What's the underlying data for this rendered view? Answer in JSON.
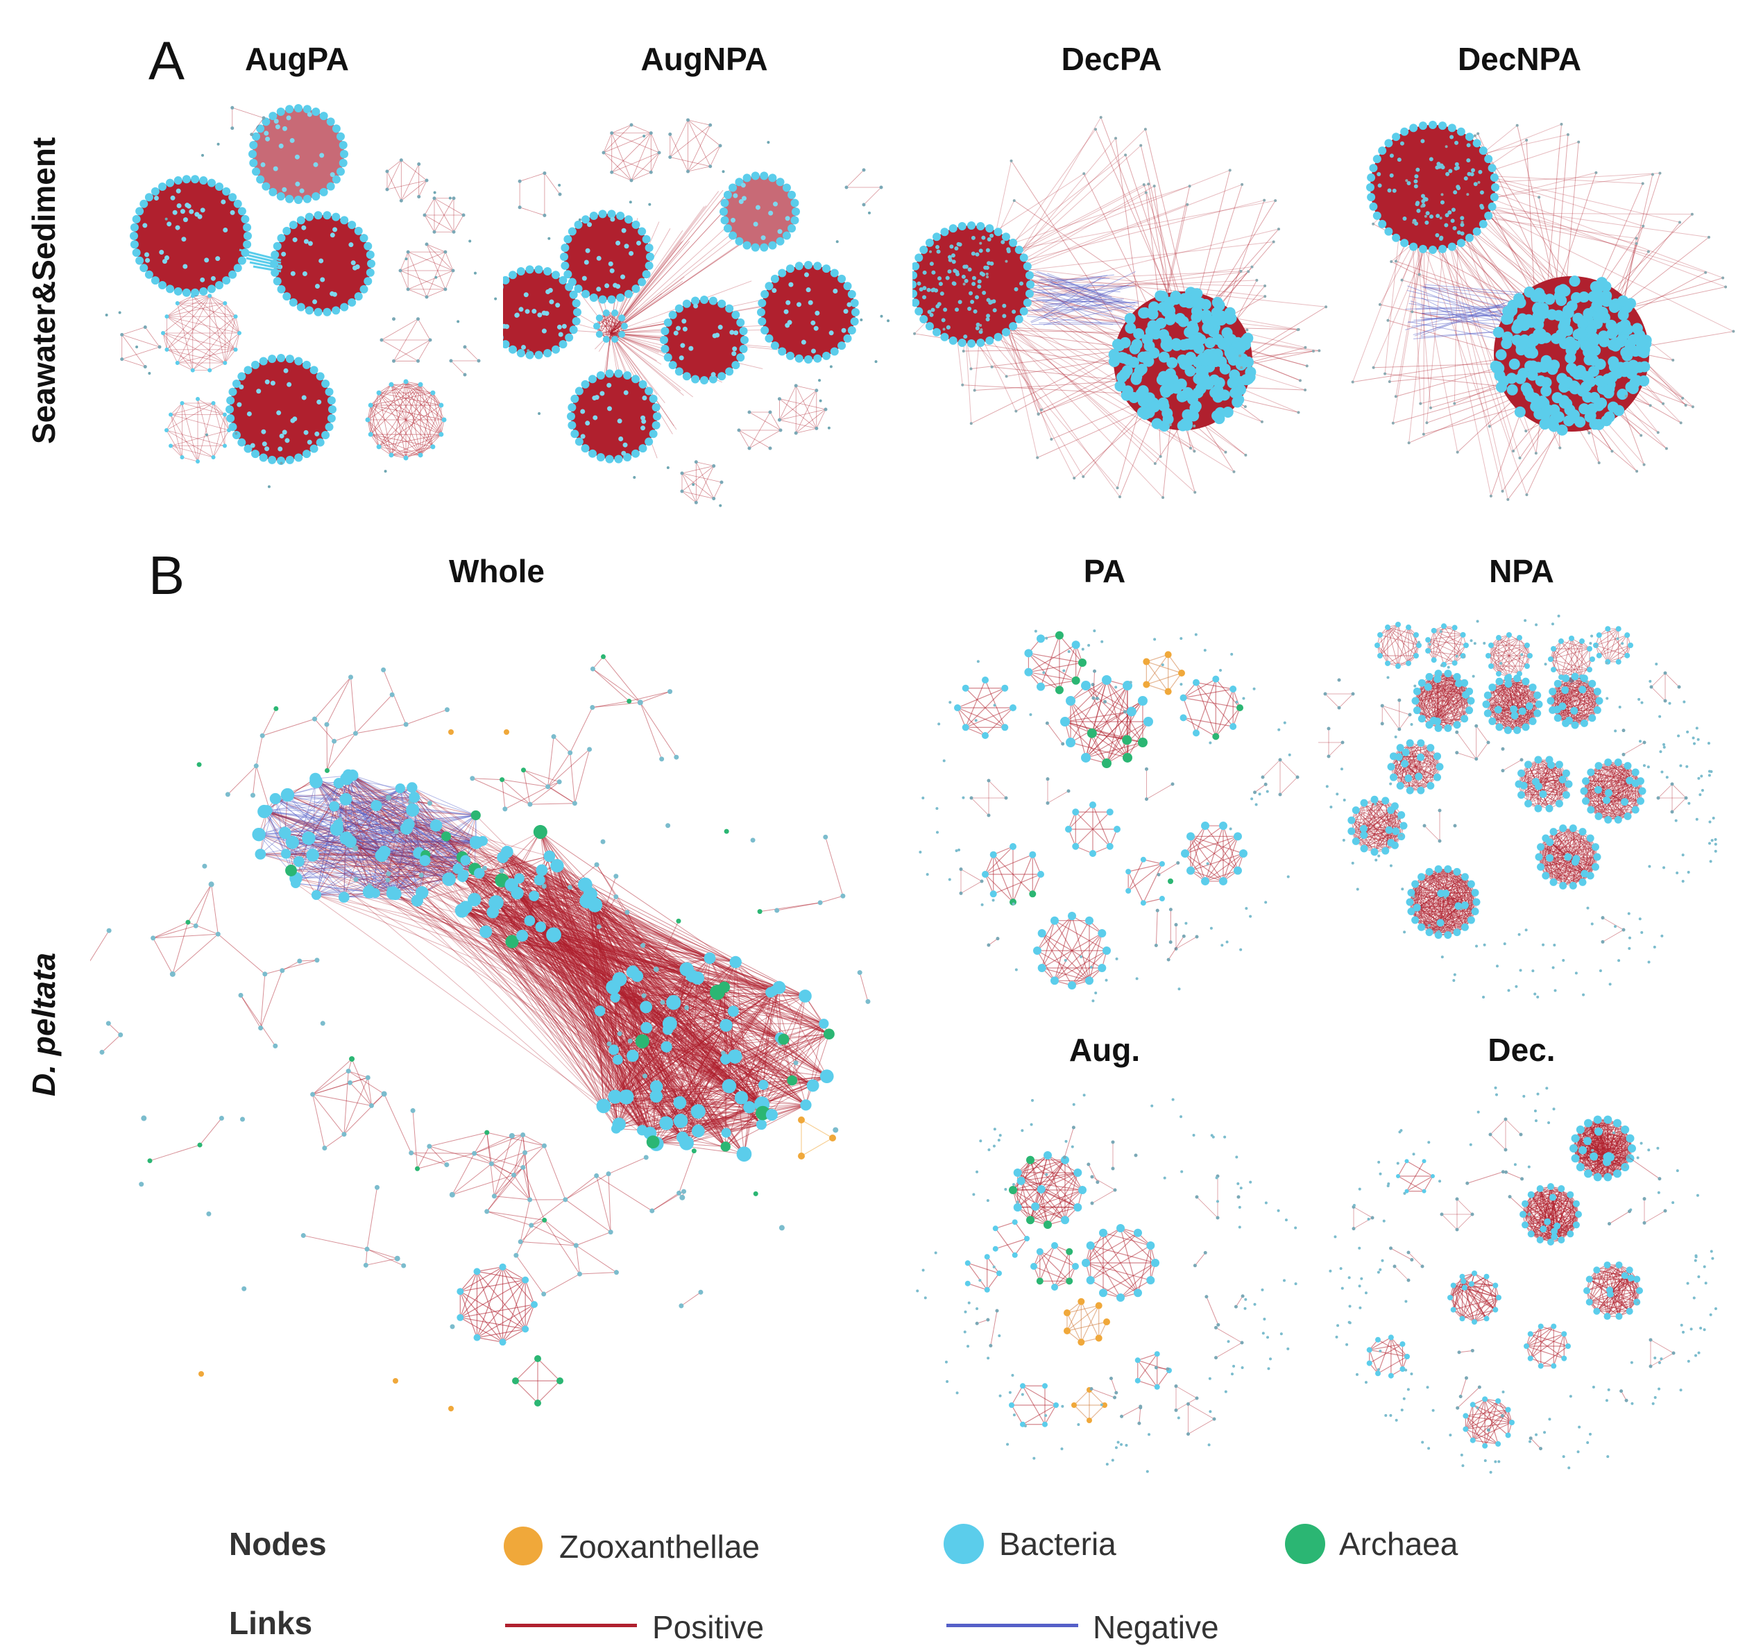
{
  "colors": {
    "zooxanthellae": "#F0A83A",
    "bacteria": "#5BCDEB",
    "archaea": "#2BB673",
    "positive": "#B0202E",
    "negative": "#5560C8"
  },
  "panel_a": {
    "letter": "A",
    "row_label": "Seawater&Sediment",
    "networks": [
      {
        "title": "AugPA"
      },
      {
        "title": "AugNPA"
      },
      {
        "title": "DecPA"
      },
      {
        "title": "DecNPA"
      }
    ]
  },
  "panel_b": {
    "letter": "B",
    "row_label": "D. peltata",
    "networks": [
      {
        "title": "Whole"
      },
      {
        "title": "PA"
      },
      {
        "title": "NPA"
      },
      {
        "title": "Aug."
      },
      {
        "title": "Dec."
      }
    ]
  },
  "legend": {
    "nodes_label": "Nodes",
    "links_label": "Links",
    "node_types": [
      "Zooxanthellae",
      "Bacteria",
      "Archaea"
    ],
    "link_types": [
      "Positive",
      "Negative"
    ]
  }
}
